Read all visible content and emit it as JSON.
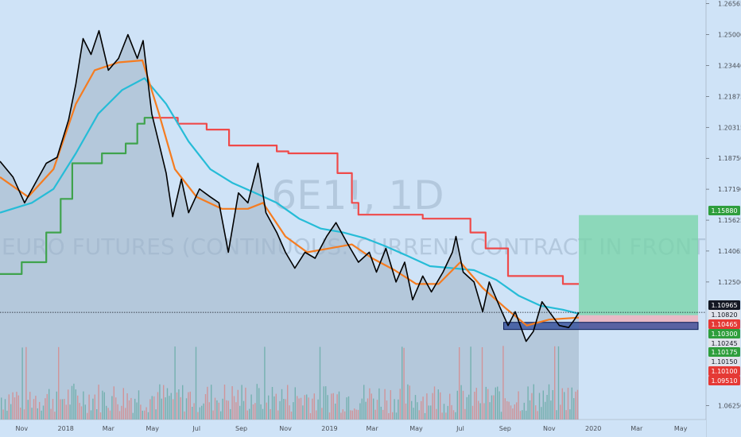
{
  "chart_data": {
    "type": "line",
    "watermark": {
      "symbol": "6E1!, 1D",
      "description": "EURO FUTURES (CONTINUOUS: CURRENT CONTRACT IN FRONT)"
    },
    "ylim": [
      1.0555,
      1.2675
    ],
    "x_range": [
      "2017-10-02",
      "2020-06-05"
    ],
    "y_ticks": [
      "1.26565",
      "1.25000",
      "1.23440",
      "1.21875",
      "1.20315",
      "1.18750",
      "1.17190",
      "1.15625",
      "1.14065",
      "1.12500",
      "1.06250"
    ],
    "x_ticks": [
      "Nov",
      "2018",
      "Mar",
      "May",
      "Jul",
      "Sep",
      "Nov",
      "2019",
      "Mar",
      "May",
      "Jul",
      "Sep",
      "Nov",
      "2020",
      "Mar",
      "May"
    ],
    "axis_tags": [
      {
        "label": "1.15880",
        "bg": "#2e9e3c",
        "fg": "#ffffff"
      },
      {
        "label": "1.10965",
        "bg": "#131722",
        "fg": "#ffffff"
      },
      {
        "label": "1.10820",
        "bg": "#e0e3eb",
        "fg": "#131722"
      },
      {
        "label": "1.10465",
        "bg": "#e53935",
        "fg": "#ffffff"
      },
      {
        "label": "1.10300",
        "bg": "#2e9e3c",
        "fg": "#ffffff"
      },
      {
        "label": "1.10245",
        "bg": "#e0e3eb",
        "fg": "#131722"
      },
      {
        "label": "1.10175",
        "bg": "#2e9e3c",
        "fg": "#ffffff"
      },
      {
        "label": "1.10150",
        "bg": "#e0e3eb",
        "fg": "#131722"
      },
      {
        "label": "1.10100",
        "bg": "#e53935",
        "fg": "#ffffff"
      },
      {
        "label": "1.09510",
        "bg": "#e53935",
        "fg": "#ffffff"
      }
    ],
    "last_price": 1.10965,
    "series": [
      {
        "color": "#000000",
        "points": [
          [
            "2017-10-02",
            1.186
          ],
          [
            "2017-10-20",
            1.178
          ],
          [
            "2017-11-05",
            1.165
          ],
          [
            "2017-11-20",
            1.175
          ],
          [
            "2017-12-05",
            1.185
          ],
          [
            "2017-12-20",
            1.188
          ],
          [
            "2018-01-05",
            1.207
          ],
          [
            "2018-01-15",
            1.225
          ],
          [
            "2018-01-25",
            1.248
          ],
          [
            "2018-02-05",
            1.24
          ],
          [
            "2018-02-16",
            1.252
          ],
          [
            "2018-03-01",
            1.232
          ],
          [
            "2018-03-15",
            1.238
          ],
          [
            "2018-03-28",
            1.25
          ],
          [
            "2018-04-10",
            1.238
          ],
          [
            "2018-04-18",
            1.247
          ],
          [
            "2018-04-30",
            1.21
          ],
          [
            "2018-05-10",
            1.195
          ],
          [
            "2018-05-20",
            1.18
          ],
          [
            "2018-05-29",
            1.158
          ],
          [
            "2018-06-10",
            1.177
          ],
          [
            "2018-06-20",
            1.16
          ],
          [
            "2018-07-05",
            1.172
          ],
          [
            "2018-07-20",
            1.168
          ],
          [
            "2018-08-01",
            1.165
          ],
          [
            "2018-08-14",
            1.14
          ],
          [
            "2018-08-28",
            1.17
          ],
          [
            "2018-09-10",
            1.165
          ],
          [
            "2018-09-24",
            1.185
          ],
          [
            "2018-10-05",
            1.16
          ],
          [
            "2018-10-20",
            1.15
          ],
          [
            "2018-11-01",
            1.14
          ],
          [
            "2018-11-14",
            1.132
          ],
          [
            "2018-11-28",
            1.14
          ],
          [
            "2018-12-12",
            1.137
          ],
          [
            "2018-12-28",
            1.148
          ],
          [
            "2019-01-10",
            1.155
          ],
          [
            "2019-01-25",
            1.145
          ],
          [
            "2019-02-10",
            1.135
          ],
          [
            "2019-02-25",
            1.14
          ],
          [
            "2019-03-07",
            1.13
          ],
          [
            "2019-03-20",
            1.142
          ],
          [
            "2019-04-03",
            1.125
          ],
          [
            "2019-04-15",
            1.135
          ],
          [
            "2019-04-26",
            1.116
          ],
          [
            "2019-05-10",
            1.128
          ],
          [
            "2019-05-22",
            1.12
          ],
          [
            "2019-06-07",
            1.13
          ],
          [
            "2019-06-20",
            1.14
          ],
          [
            "2019-06-25",
            1.148
          ],
          [
            "2019-07-05",
            1.13
          ],
          [
            "2019-07-20",
            1.125
          ],
          [
            "2019-08-01",
            1.11
          ],
          [
            "2019-08-10",
            1.125
          ],
          [
            "2019-08-25",
            1.112
          ],
          [
            "2019-09-05",
            1.103
          ],
          [
            "2019-09-15",
            1.11
          ],
          [
            "2019-09-30",
            1.095
          ],
          [
            "2019-10-10",
            1.1
          ],
          [
            "2019-10-22",
            1.115
          ],
          [
            "2019-11-05",
            1.108
          ],
          [
            "2019-11-15",
            1.103
          ],
          [
            "2019-11-28",
            1.102
          ],
          [
            "2019-12-06",
            1.106
          ],
          [
            "2019-12-12",
            1.1096
          ]
        ]
      },
      {
        "color": "#f57c20",
        "points": [
          [
            "2017-10-02",
            1.178
          ],
          [
            "2017-11-10",
            1.168
          ],
          [
            "2017-12-15",
            1.182
          ],
          [
            "2018-01-15",
            1.215
          ],
          [
            "2018-02-10",
            1.232
          ],
          [
            "2018-03-15",
            1.236
          ],
          [
            "2018-04-17",
            1.237
          ],
          [
            "2018-05-10",
            1.21
          ],
          [
            "2018-06-01",
            1.182
          ],
          [
            "2018-07-01",
            1.168
          ],
          [
            "2018-08-05",
            1.162
          ],
          [
            "2018-09-10",
            1.162
          ],
          [
            "2018-10-01",
            1.165
          ],
          [
            "2018-11-01",
            1.148
          ],
          [
            "2018-12-01",
            1.14
          ],
          [
            "2019-01-01",
            1.142
          ],
          [
            "2019-02-01",
            1.144
          ],
          [
            "2019-03-01",
            1.137
          ],
          [
            "2019-04-01",
            1.131
          ],
          [
            "2019-05-01",
            1.124
          ],
          [
            "2019-06-01",
            1.124
          ],
          [
            "2019-07-01",
            1.135
          ],
          [
            "2019-08-01",
            1.122
          ],
          [
            "2019-09-01",
            1.112
          ],
          [
            "2019-10-01",
            1.103
          ],
          [
            "2019-11-01",
            1.106
          ],
          [
            "2019-12-12",
            1.107
          ]
        ]
      },
      {
        "color": "#26bcd7",
        "points": [
          [
            "2017-10-02",
            1.16
          ],
          [
            "2017-11-15",
            1.165
          ],
          [
            "2017-12-15",
            1.172
          ],
          [
            "2018-01-15",
            1.19
          ],
          [
            "2018-02-15",
            1.21
          ],
          [
            "2018-03-20",
            1.222
          ],
          [
            "2018-04-20",
            1.228
          ],
          [
            "2018-05-20",
            1.215
          ],
          [
            "2018-06-20",
            1.196
          ],
          [
            "2018-07-20",
            1.182
          ],
          [
            "2018-08-20",
            1.175
          ],
          [
            "2018-09-20",
            1.17
          ],
          [
            "2018-10-20",
            1.165
          ],
          [
            "2018-11-20",
            1.157
          ],
          [
            "2018-12-20",
            1.152
          ],
          [
            "2019-01-20",
            1.15
          ],
          [
            "2019-02-20",
            1.147
          ],
          [
            "2019-03-20",
            1.143
          ],
          [
            "2019-04-20",
            1.138
          ],
          [
            "2019-05-20",
            1.133
          ],
          [
            "2019-06-20",
            1.132
          ],
          [
            "2019-07-20",
            1.131
          ],
          [
            "2019-08-20",
            1.126
          ],
          [
            "2019-09-20",
            1.118
          ],
          [
            "2019-10-20",
            1.113
          ],
          [
            "2019-11-20",
            1.111
          ],
          [
            "2019-12-12",
            1.109
          ]
        ]
      },
      {
        "color": "#3fa34d",
        "points": [
          [
            "2017-10-02",
            1.129
          ],
          [
            "2017-11-01",
            1.129
          ],
          [
            "2017-11-01",
            1.135
          ],
          [
            "2017-12-05",
            1.135
          ],
          [
            "2017-12-05",
            1.15
          ],
          [
            "2017-12-25",
            1.15
          ],
          [
            "2017-12-25",
            1.167
          ],
          [
            "2018-01-10",
            1.167
          ],
          [
            "2018-01-10",
            1.185
          ],
          [
            "2018-02-20",
            1.185
          ],
          [
            "2018-02-20",
            1.19
          ],
          [
            "2018-03-25",
            1.19
          ],
          [
            "2018-03-25",
            1.195
          ],
          [
            "2018-04-10",
            1.195
          ],
          [
            "2018-04-10",
            1.205
          ],
          [
            "2018-04-20",
            1.205
          ],
          [
            "2018-04-20",
            1.208
          ],
          [
            "2018-05-01",
            1.208
          ]
        ]
      },
      {
        "color": "#ef4a4a",
        "points": [
          [
            "2018-05-01",
            1.208
          ],
          [
            "2018-06-05",
            1.208
          ],
          [
            "2018-06-05",
            1.205
          ],
          [
            "2018-07-15",
            1.205
          ],
          [
            "2018-07-15",
            1.202
          ],
          [
            "2018-08-15",
            1.202
          ],
          [
            "2018-08-15",
            1.194
          ],
          [
            "2018-10-20",
            1.194
          ],
          [
            "2018-10-20",
            1.191
          ],
          [
            "2018-11-05",
            1.191
          ],
          [
            "2018-11-05",
            1.19
          ],
          [
            "2019-01-12",
            1.19
          ],
          [
            "2019-01-12",
            1.18
          ],
          [
            "2019-02-01",
            1.18
          ],
          [
            "2019-02-01",
            1.165
          ],
          [
            "2019-02-10",
            1.165
          ],
          [
            "2019-02-10",
            1.159
          ],
          [
            "2019-05-10",
            1.159
          ],
          [
            "2019-05-10",
            1.157
          ],
          [
            "2019-07-15",
            1.157
          ],
          [
            "2019-07-15",
            1.15
          ],
          [
            "2019-08-05",
            1.15
          ],
          [
            "2019-08-05",
            1.142
          ],
          [
            "2019-09-05",
            1.142
          ],
          [
            "2019-09-05",
            1.128
          ],
          [
            "2019-11-20",
            1.128
          ],
          [
            "2019-11-20",
            1.124
          ],
          [
            "2019-12-12",
            1.124
          ]
        ]
      }
    ],
    "position_tool": {
      "start": "2019-12-12",
      "end": "2020-05-25",
      "entry": 1.1082,
      "target": 1.1588,
      "stop": 1.103
    },
    "range_box": {
      "start": "2019-08-30",
      "end": "2020-05-25",
      "top": 1.1046,
      "bottom": 1.101
    },
    "volume_range": [
      0,
      1
    ]
  }
}
